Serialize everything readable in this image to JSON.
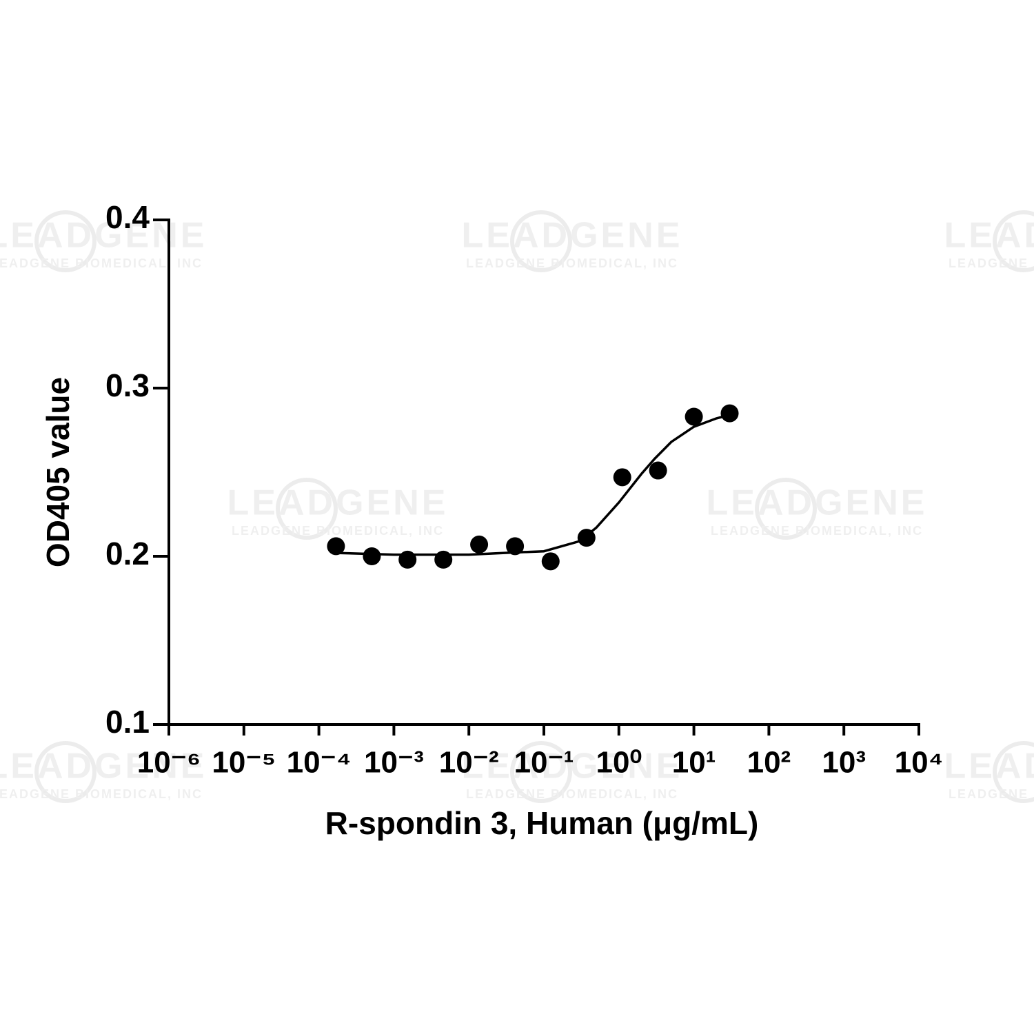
{
  "chart_data": {
    "type": "scatter",
    "y_label": "OD405 value",
    "x_label": "R-spondin 3, Human (μg/mL)",
    "xscale": "log",
    "xlim": [
      1e-06,
      10000
    ],
    "xticks": [
      {
        "value": 1e-06,
        "label": "10⁻⁶"
      },
      {
        "value": 1e-05,
        "label": "10⁻⁵"
      },
      {
        "value": 0.0001,
        "label": "10⁻⁴"
      },
      {
        "value": 0.001,
        "label": "10⁻³"
      },
      {
        "value": 0.01,
        "label": "10⁻²"
      },
      {
        "value": 0.1,
        "label": "10⁻¹"
      },
      {
        "value": 1,
        "label": "10⁰"
      },
      {
        "value": 10,
        "label": "10¹"
      },
      {
        "value": 100,
        "label": "10²"
      },
      {
        "value": 1000,
        "label": "10³"
      },
      {
        "value": 10000,
        "label": "10⁴"
      }
    ],
    "ylim": [
      0.1,
      0.4
    ],
    "yticks": [
      0.1,
      0.2,
      0.3,
      0.4
    ],
    "color": "#000000",
    "points": {
      "x": [
        0.000169,
        0.000508,
        0.00152,
        0.00457,
        0.0137,
        0.0412,
        0.123,
        0.37,
        1.11,
        3.33,
        10,
        30
      ],
      "values": [
        0.206,
        0.2,
        0.198,
        0.198,
        0.207,
        0.206,
        0.197,
        0.211,
        0.247,
        0.251,
        0.283,
        0.285
      ]
    },
    "fit": {
      "x": [
        0.000164,
        0.001,
        0.01,
        0.03,
        0.1,
        0.3,
        0.5,
        1,
        2,
        3,
        5,
        10,
        20,
        30
      ],
      "values": [
        0.202,
        0.201,
        0.201,
        0.202,
        0.203,
        0.209,
        0.217,
        0.232,
        0.249,
        0.258,
        0.268,
        0.277,
        0.282,
        0.284
      ]
    }
  },
  "watermark": {
    "text": "LEADGENE",
    "subtext": "LEADGENE BIOMEDICAL, INC"
  }
}
